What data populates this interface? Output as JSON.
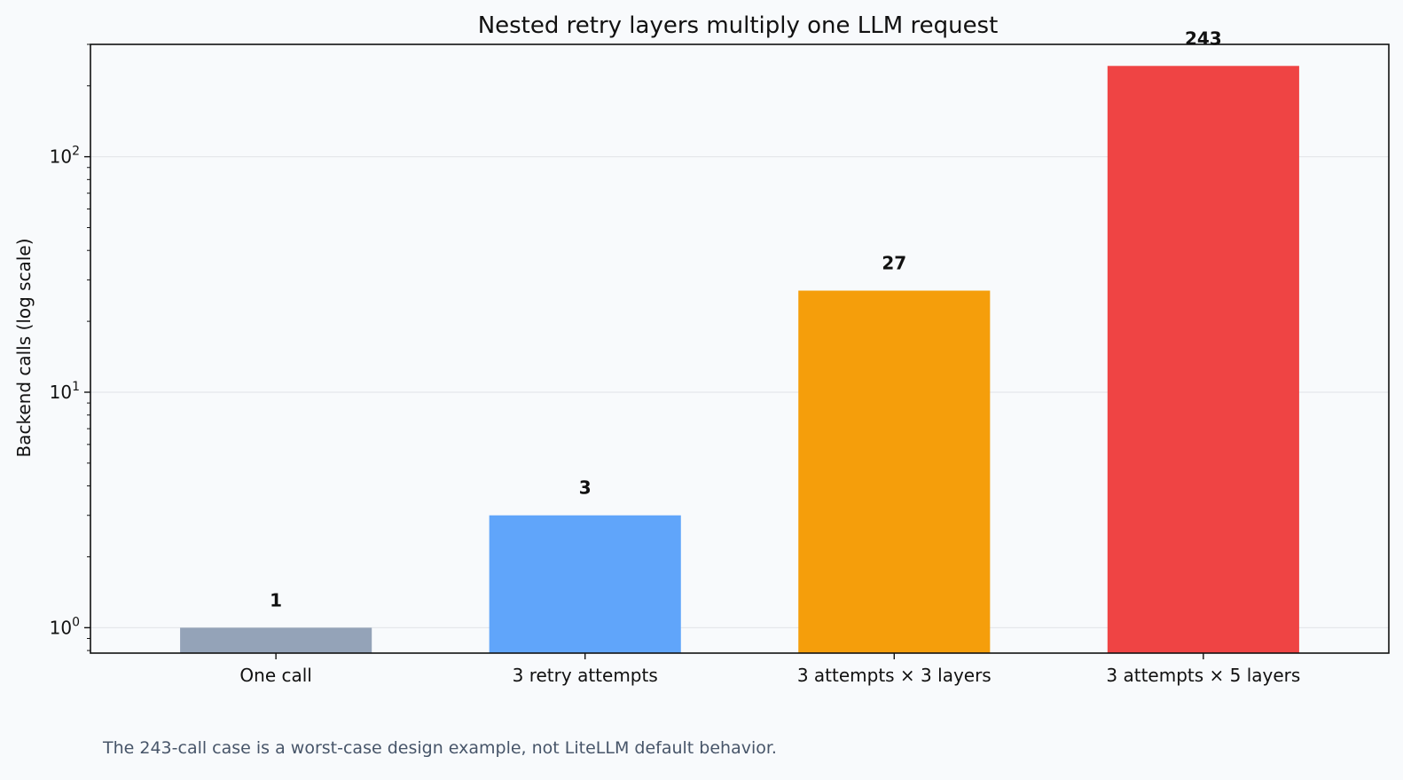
{
  "chart_data": {
    "type": "bar",
    "title": "Nested retry layers multiply one LLM request",
    "xlabel": "",
    "ylabel": "Backend calls (log scale)",
    "yscale": "log",
    "ylim": [
      0.78,
      300
    ],
    "grid": "horizontal",
    "categories": [
      "One call",
      "3 retry attempts",
      "3 attempts × 3 layers",
      "3 attempts × 5 layers"
    ],
    "values": [
      1,
      3,
      27,
      243
    ],
    "data_labels": [
      "1",
      "3",
      "27",
      "243"
    ],
    "colors": [
      "#94a3b8",
      "#60a5fa",
      "#f59e0b",
      "#ef4444"
    ],
    "y_ticks": [
      {
        "value": 1,
        "base": "10",
        "exp": "0"
      },
      {
        "value": 10,
        "base": "10",
        "exp": "1"
      },
      {
        "value": 100,
        "base": "10",
        "exp": "2"
      }
    ]
  },
  "footnote": "The 243-call case is a worst-case design example, not LiteLLM default behavior."
}
